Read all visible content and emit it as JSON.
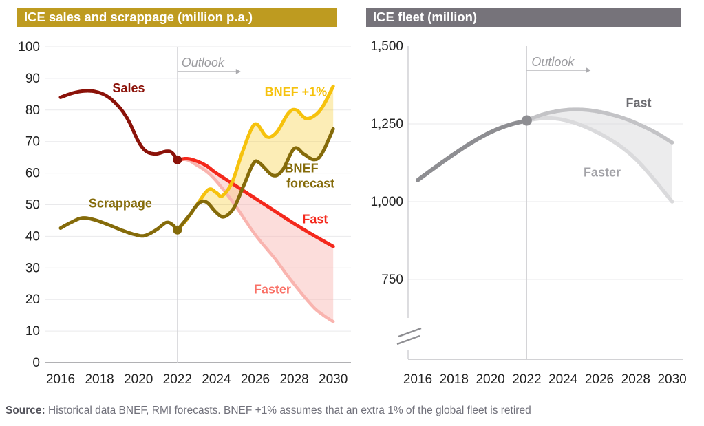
{
  "footer": {
    "source_label": "Source:",
    "source_text": "Historical data BNEF, RMI forecasts. BNEF +1% assumes that an extra 1% of the global fleet is retired"
  },
  "colors": {
    "left_header_bg": "#BE9B20",
    "right_header_bg": "#76737A",
    "sales_red": "#8B1209",
    "olive": "#856B0A",
    "bnef_yellow": "#F6C20D",
    "fast_red": "#F4281C",
    "faster_pink": "#F9B4AF",
    "fleet_gray": "#8E8E92",
    "gridline": "#E9E9EB",
    "outlook_gray": "#9B9B9F"
  },
  "chart_data": [
    {
      "id": "sales_scrappage",
      "type": "line",
      "title": "ICE sales and scrappage (million p.a.)",
      "title_bg": "#BE9B20",
      "xlabel": "",
      "ylabel": "million p.a.",
      "xlim": [
        2016,
        2030
      ],
      "ylim": [
        0,
        100
      ],
      "grid": true,
      "x_ticks": [
        2016,
        2018,
        2020,
        2022,
        2024,
        2026,
        2028,
        2030
      ],
      "y_ticks": [
        0,
        10,
        20,
        30,
        40,
        50,
        60,
        70,
        80,
        90,
        100
      ],
      "y_tick_labels": [
        "0",
        "10",
        "20",
        "30",
        "40",
        "50",
        "60",
        "70",
        "80",
        "90",
        "100"
      ],
      "outlook": {
        "label": "Outlook",
        "start_year": 2022
      },
      "series": [
        {
          "name": "Sales",
          "kind": "historical",
          "color": "#8B1209",
          "width": 5,
          "end_dot": true,
          "points": [
            [
              2016,
              84
            ],
            [
              2016.6,
              85.3
            ],
            [
              2017.2,
              86
            ],
            [
              2017.8,
              85.8
            ],
            [
              2018.4,
              84.3
            ],
            [
              2019,
              81
            ],
            [
              2019.5,
              76.5
            ],
            [
              2020,
              70
            ],
            [
              2020.4,
              66.9
            ],
            [
              2020.9,
              66.1
            ],
            [
              2021.4,
              66.9
            ],
            [
              2021.7,
              66.6
            ],
            [
              2022,
              64.2
            ]
          ]
        },
        {
          "name": "Scrappage",
          "kind": "historical",
          "color": "#856B0A",
          "width": 5,
          "end_dot": true,
          "points": [
            [
              2016,
              42.6
            ],
            [
              2016.5,
              44.3
            ],
            [
              2017.1,
              45.8
            ],
            [
              2017.7,
              45.3
            ],
            [
              2018.4,
              43.8
            ],
            [
              2019.2,
              41.8
            ],
            [
              2019.8,
              40.6
            ],
            [
              2020.3,
              40.2
            ],
            [
              2020.9,
              42
            ],
            [
              2021.4,
              44.3
            ],
            [
              2021.7,
              43.9
            ],
            [
              2022,
              42
            ]
          ]
        },
        {
          "name": "BNEF +1%",
          "kind": "forecast",
          "color": "#F6C20D",
          "width": 5,
          "points": [
            [
              2022,
              42
            ],
            [
              2022.5,
              45.5
            ],
            [
              2023,
              50
            ],
            [
              2023.6,
              54.8
            ],
            [
              2024,
              53.8
            ],
            [
              2024.3,
              52.8
            ],
            [
              2024.8,
              57
            ],
            [
              2025.3,
              66
            ],
            [
              2025.8,
              74
            ],
            [
              2026.1,
              75.4
            ],
            [
              2026.6,
              71.5
            ],
            [
              2027.1,
              73
            ],
            [
              2027.7,
              79
            ],
            [
              2028.1,
              80
            ],
            [
              2028.6,
              77.3
            ],
            [
              2029.1,
              78.5
            ],
            [
              2029.5,
              81.5
            ],
            [
              2030,
              87.5
            ]
          ]
        },
        {
          "name": "BNEF forecast",
          "kind": "forecast",
          "color": "#856B0A",
          "width": 5,
          "points": [
            [
              2022,
              42
            ],
            [
              2022.6,
              46.5
            ],
            [
              2023.1,
              50.5
            ],
            [
              2023.5,
              50.8
            ],
            [
              2024,
              47.5
            ],
            [
              2024.4,
              46.2
            ],
            [
              2024.9,
              49
            ],
            [
              2025.4,
              56
            ],
            [
              2025.9,
              63
            ],
            [
              2026.2,
              63.3
            ],
            [
              2026.9,
              59.3
            ],
            [
              2027.4,
              61
            ],
            [
              2028,
              67.8
            ],
            [
              2028.5,
              66
            ],
            [
              2029,
              64.3
            ],
            [
              2029.4,
              66
            ],
            [
              2030,
              74
            ]
          ]
        },
        {
          "name": "Fast",
          "kind": "forecast",
          "color": "#F4281C",
          "width": 5,
          "points": [
            [
              2022,
              64.2
            ],
            [
              2022.5,
              64.6
            ],
            [
              2023,
              63.8
            ],
            [
              2023.5,
              62.3
            ],
            [
              2024,
              60
            ],
            [
              2025,
              56
            ],
            [
              2026,
              52
            ],
            [
              2027,
              48
            ],
            [
              2028,
              44
            ],
            [
              2029,
              40.3
            ],
            [
              2030,
              36.8
            ]
          ]
        },
        {
          "name": "Faster",
          "kind": "forecast",
          "color": "#F9B4AF",
          "width": 4.5,
          "points": [
            [
              2022,
              64.2
            ],
            [
              2022.5,
              64.2
            ],
            [
              2023,
              62.5
            ],
            [
              2023.6,
              60
            ],
            [
              2024.2,
              56
            ],
            [
              2025,
              49.5
            ],
            [
              2026,
              40.5
            ],
            [
              2027,
              33
            ],
            [
              2027.6,
              28
            ],
            [
              2028.3,
              22.5
            ],
            [
              2029,
              17.5
            ],
            [
              2029.5,
              15
            ],
            [
              2030,
              13
            ]
          ]
        }
      ],
      "bands": [
        {
          "upper": "BNEF +1%",
          "lower": "BNEF forecast",
          "fill": "#F6C20D",
          "opacity": 0.3
        },
        {
          "upper": "Fast",
          "lower": "Faster",
          "fill": "#F9B4AF",
          "opacity": 0.45
        }
      ],
      "annotations": [
        {
          "text": "Sales",
          "year": 2019.5,
          "value": 85.6,
          "color": "#8B1209"
        },
        {
          "text": "Scrappage",
          "year": 2019.07,
          "value": 49.1,
          "color": "#856B0A"
        },
        {
          "text": "BNEF +1%",
          "year": 2028.08,
          "value": 84.4,
          "color": "#F6C20D"
        },
        {
          "text": "BNEF",
          "year": 2028.37,
          "value": 60.2,
          "color": "#856B0A"
        },
        {
          "text": "forecast",
          "year": 2028.83,
          "value": 55.4,
          "color": "#856B0A"
        },
        {
          "text": "Fast",
          "year": 2029.07,
          "value": 44.1,
          "color": "#F4281C"
        },
        {
          "text": "Faster",
          "year": 2026.88,
          "value": 21.9,
          "color": "#F97066"
        }
      ]
    },
    {
      "id": "fleet",
      "type": "line",
      "title": "ICE fleet (million)",
      "title_bg": "#76737A",
      "xlabel": "",
      "ylabel": "million",
      "xlim": [
        2016,
        2030
      ],
      "ylim": [
        750,
        1500
      ],
      "axis_break": true,
      "grid": true,
      "x_ticks": [
        2016,
        2018,
        2020,
        2022,
        2024,
        2026,
        2028,
        2030
      ],
      "y_ticks": [
        750,
        1000,
        1250,
        1500
      ],
      "y_tick_labels": [
        "750",
        "1,000",
        "1,250",
        "1,500"
      ],
      "outlook": {
        "label": "Outlook",
        "start_year": 2022
      },
      "series": [
        {
          "name": "Fleet",
          "kind": "historical",
          "color": "#8E8E92",
          "width": 6,
          "end_dot": true,
          "points": [
            [
              2016,
              1069
            ],
            [
              2017,
              1112
            ],
            [
              2018,
              1153
            ],
            [
              2019,
              1191
            ],
            [
              2020,
              1223
            ],
            [
              2021,
              1246
            ],
            [
              2022,
              1261
            ]
          ]
        },
        {
          "name": "Fast",
          "kind": "forecast",
          "color": "#C3C3C6",
          "width": 5.5,
          "points": [
            [
              2022,
              1261
            ],
            [
              2022.7,
              1277
            ],
            [
              2023.4,
              1288
            ],
            [
              2024.2,
              1295
            ],
            [
              2025,
              1296
            ],
            [
              2025.8,
              1291
            ],
            [
              2026.6,
              1281
            ],
            [
              2027.4,
              1267
            ],
            [
              2028.2,
              1248
            ],
            [
              2029.1,
              1222
            ],
            [
              2030,
              1190
            ]
          ]
        },
        {
          "name": "Faster",
          "kind": "forecast",
          "color": "#DADADC",
          "width": 5.5,
          "points": [
            [
              2022,
              1261
            ],
            [
              2022.7,
              1267
            ],
            [
              2023.4,
              1268
            ],
            [
              2024.1,
              1262
            ],
            [
              2024.9,
              1248
            ],
            [
              2025.7,
              1228
            ],
            [
              2026.5,
              1203
            ],
            [
              2027.3,
              1172
            ],
            [
              2028.1,
              1131
            ],
            [
              2029,
              1072
            ],
            [
              2030,
              1000
            ]
          ]
        }
      ],
      "bands": [
        {
          "upper": "Fast",
          "lower": "Faster",
          "fill": "#D9D9DB",
          "opacity": 0.5
        }
      ],
      "annotations": [
        {
          "text": "Fast",
          "year": 2028.16,
          "value": 1304,
          "color": "#6D6D72"
        },
        {
          "text": "Faster",
          "year": 2026.15,
          "value": 1081,
          "color": "#A3A3A8"
        }
      ]
    }
  ]
}
